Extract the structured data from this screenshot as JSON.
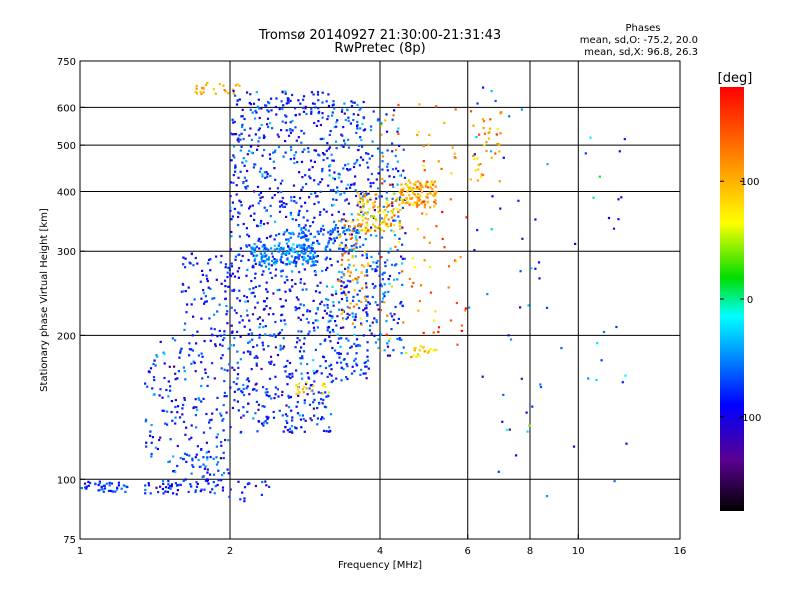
{
  "chart_data": {
    "type": "scatter",
    "title": "Tromsø 20140927 21:30:00-21:31:43",
    "subtitle": "RwPretec (8p)",
    "xlabel": "Frequency [MHz]",
    "ylabel": "Stationary phase Virtual Height [km]",
    "x_scale": "log2",
    "y_scale": "log",
    "xlim": [
      1,
      16
    ],
    "ylim": [
      75,
      750
    ],
    "x_ticks": [
      "1",
      "2",
      "4",
      "6",
      "8",
      "10",
      "16"
    ],
    "x_tick_values": [
      1,
      2,
      4,
      6,
      8,
      10,
      16
    ],
    "y_ticks": [
      "75",
      "100",
      "200",
      "300",
      "400",
      "500",
      "600",
      "750"
    ],
    "y_tick_values": [
      75,
      100,
      200,
      300,
      400,
      500,
      600,
      750
    ],
    "grid": true,
    "stats": {
      "heading": "Phases",
      "line_o": "mean, sd,O: -75.2, 20.0",
      "line_x": "mean, sd,X:  96.8, 26.3"
    },
    "colorbar": {
      "label": "[deg]",
      "range": [
        -180,
        180
      ],
      "ticks": [
        "100",
        "0",
        "-100"
      ],
      "tick_values": [
        100,
        0,
        -100
      ]
    },
    "clusters": [
      {
        "freq": [
          0.98,
          1.25
        ],
        "height": [
          94,
          99
        ],
        "phase": [
          -75,
          18
        ],
        "count": 45
      },
      {
        "freq": [
          1.35,
          1.9
        ],
        "height": [
          93,
          100
        ],
        "phase": [
          -80,
          15
        ],
        "count": 55
      },
      {
        "freq": [
          1.9,
          2.4
        ],
        "height": [
          90,
          100
        ],
        "phase": [
          -85,
          15
        ],
        "count": 20
      },
      {
        "freq": [
          1.5,
          2.0
        ],
        "height": [
          100,
          112
        ],
        "phase": [
          -75,
          20
        ],
        "count": 40
      },
      {
        "freq": [
          1.35,
          2.0
        ],
        "height": [
          110,
          200
        ],
        "phase": [
          -80,
          22
        ],
        "count": 180
      },
      {
        "freq": [
          1.6,
          2.0
        ],
        "height": [
          200,
          300
        ],
        "phase": [
          -80,
          20
        ],
        "count": 80
      },
      {
        "freq": [
          1.7,
          2.1
        ],
        "height": [
          640,
          675
        ],
        "phase": [
          100,
          10
        ],
        "count": 25
      },
      {
        "freq": [
          2.0,
          3.2
        ],
        "height": [
          125,
          650
        ],
        "phase": [
          -80,
          22
        ],
        "count": 900
      },
      {
        "freq": [
          3.2,
          3.8
        ],
        "height": [
          160,
          620
        ],
        "phase": [
          -75,
          25
        ],
        "count": 320
      },
      {
        "freq": [
          3.8,
          4.5
        ],
        "height": [
          180,
          600
        ],
        "phase": [
          -70,
          25
        ],
        "count": 180
      },
      {
        "freq": [
          2.2,
          3.0
        ],
        "height": [
          280,
          310
        ],
        "phase": [
          -50,
          15
        ],
        "count": 140
      },
      {
        "freq": [
          2.6,
          3.6
        ],
        "height": [
          300,
          340
        ],
        "phase": [
          -60,
          18
        ],
        "count": 90
      },
      {
        "freq": [
          3.3,
          3.8
        ],
        "height": [
          210,
          350
        ],
        "phase": [
          110,
          20
        ],
        "count": 70
      },
      {
        "freq": [
          3.6,
          4.4
        ],
        "height": [
          330,
          400
        ],
        "phase": [
          90,
          25
        ],
        "count": 110
      },
      {
        "freq": [
          4.4,
          5.2
        ],
        "height": [
          370,
          420
        ],
        "phase": [
          100,
          20
        ],
        "count": 110
      },
      {
        "freq": [
          4.5,
          5.2
        ],
        "height": [
          180,
          190
        ],
        "phase": [
          80,
          15
        ],
        "count": 20
      },
      {
        "freq": [
          4.0,
          6.0
        ],
        "height": [
          180,
          620
        ],
        "phase": [
          120,
          30
        ],
        "count": 90
      },
      {
        "freq": [
          6.0,
          7.0
        ],
        "height": [
          420,
          620
        ],
        "phase": [
          110,
          25
        ],
        "count": 40
      },
      {
        "freq": [
          2.7,
          3.2
        ],
        "height": [
          150,
          160
        ],
        "phase": [
          85,
          15
        ],
        "count": 20
      },
      {
        "freq": [
          6.0,
          12.5
        ],
        "height": [
          85,
          680
        ],
        "phase": [
          -60,
          40
        ],
        "count": 70
      }
    ]
  }
}
